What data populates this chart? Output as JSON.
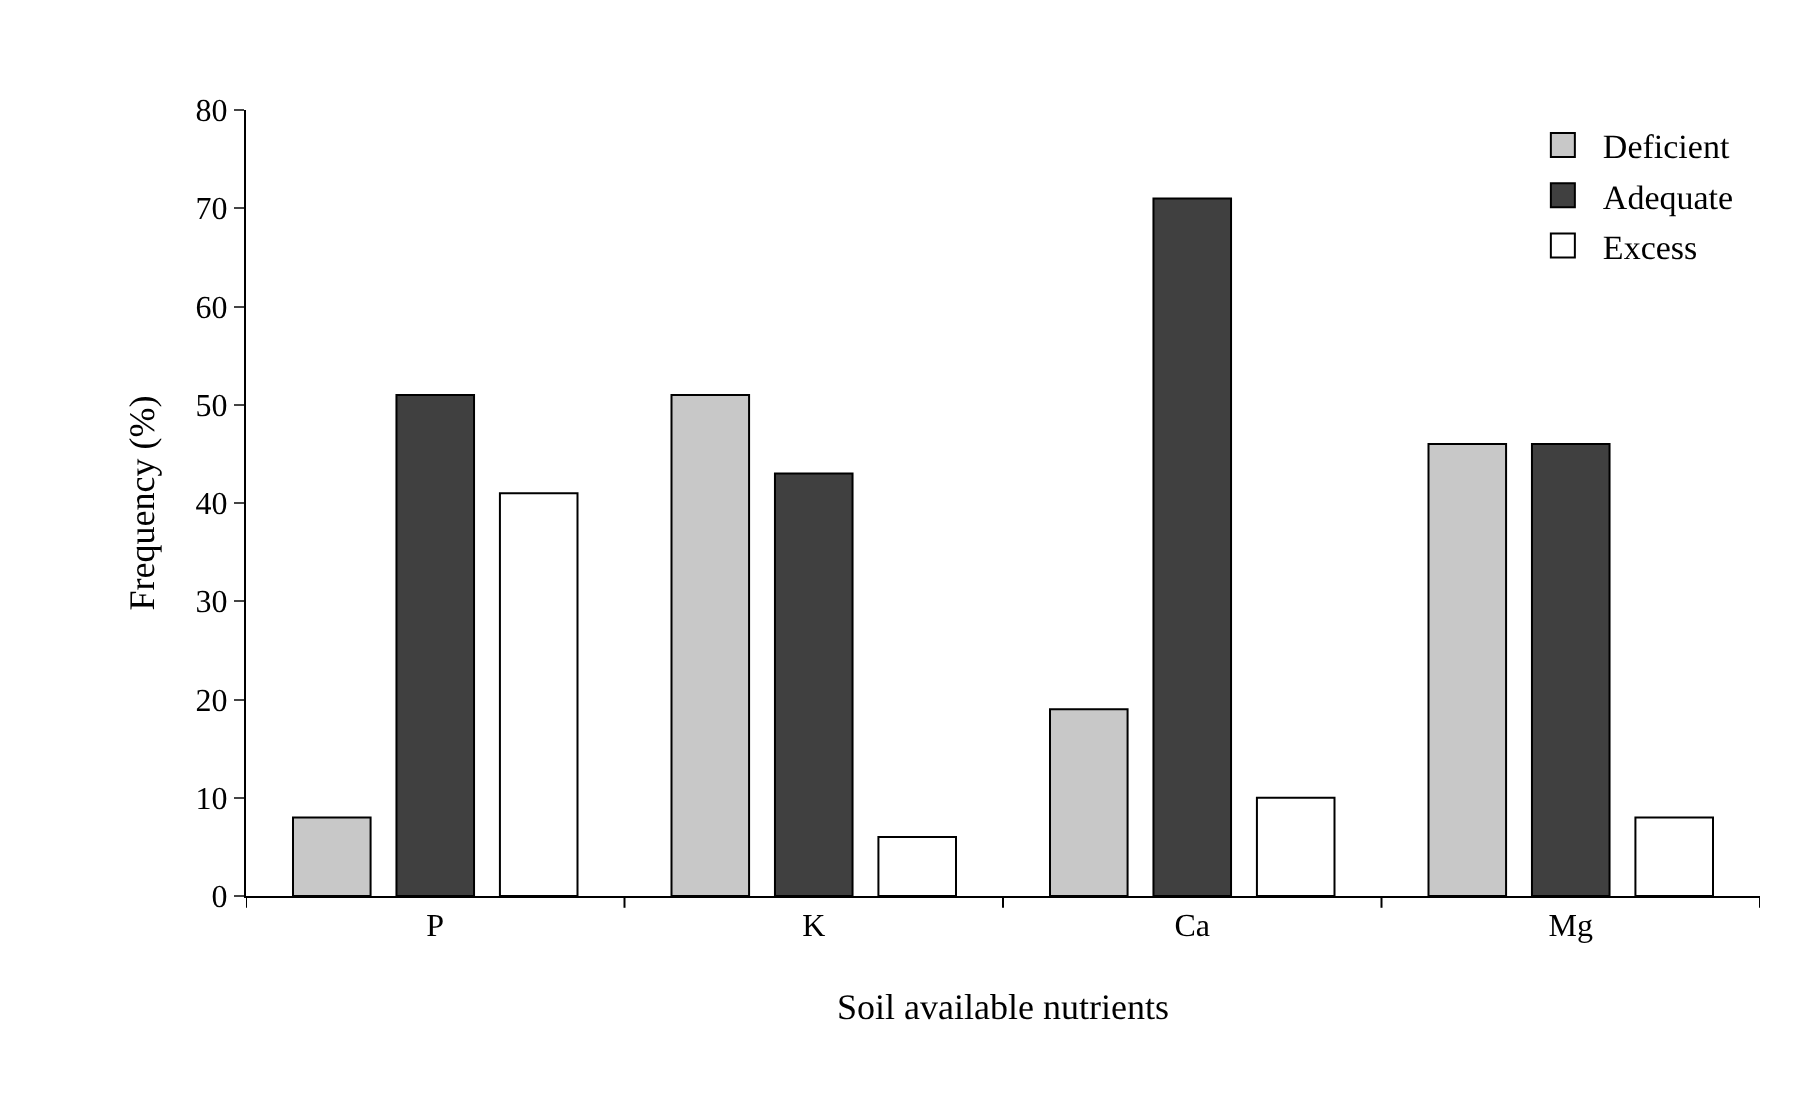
{
  "chart_data": {
    "type": "bar",
    "xlabel": "Soil available nutrients",
    "ylabel": "Frequency (%)",
    "categories": [
      "P",
      "K",
      "Ca",
      "Mg"
    ],
    "series": [
      {
        "name": "Deficient",
        "color": "#c8c8c8",
        "values": [
          8,
          51,
          19,
          46
        ]
      },
      {
        "name": "Adequate",
        "color": "#404040",
        "values": [
          51,
          43,
          71,
          46
        ]
      },
      {
        "name": "Excess",
        "color": "#ffffff",
        "values": [
          41,
          6,
          10,
          8
        ]
      }
    ],
    "ylim": [
      0,
      80
    ],
    "yticks": [
      0,
      10,
      20,
      30,
      40,
      50,
      60,
      70,
      80
    ],
    "legend": "top right"
  }
}
